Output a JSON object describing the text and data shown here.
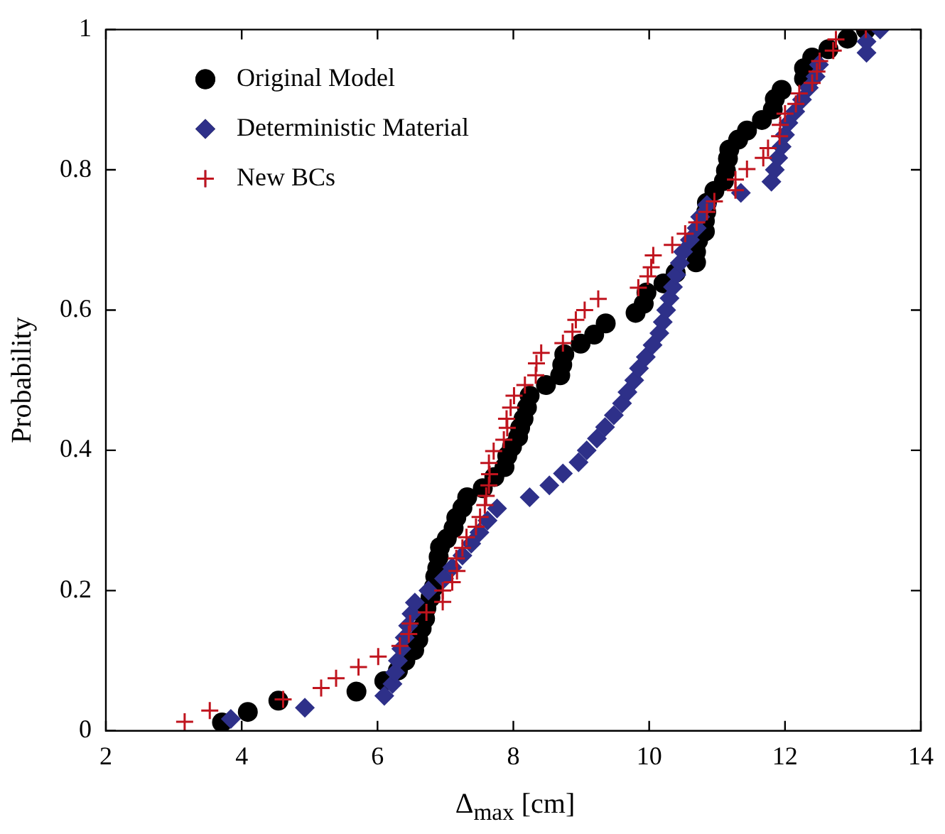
{
  "chart_data": {
    "type": "scatter",
    "xlabel": "Δ$_{max}$ [cm]",
    "ylabel": "Probability",
    "xlim": [
      2,
      14
    ],
    "xticks": [
      2,
      4,
      6,
      8,
      10,
      12,
      14
    ],
    "ylim": [
      0,
      1
    ],
    "yticks": [
      0,
      0.2,
      0.4,
      0.6,
      0.8,
      1
    ],
    "grid": false,
    "legend": "top left",
    "series": [
      {
        "name": "Original Model",
        "color": "#000000",
        "marker": "circle",
        "x": [
          3.71,
          4.09,
          4.54,
          5.69,
          6.1,
          6.3,
          6.41,
          6.54,
          6.6,
          6.65,
          6.7,
          6.72,
          6.78,
          6.83,
          6.85,
          6.88,
          6.9,
          6.92,
          7.02,
          7.12,
          7.16,
          7.25,
          7.32,
          7.55,
          7.72,
          7.87,
          7.91,
          7.98,
          8.07,
          8.1,
          8.15,
          8.2,
          8.24,
          8.48,
          8.69,
          8.72,
          8.75,
          8.99,
          9.19,
          9.36,
          9.8,
          9.92,
          9.96,
          10.21,
          10.39,
          10.69,
          10.69,
          10.72,
          10.82,
          10.82,
          10.84,
          10.85,
          10.96,
          11.1,
          11.13,
          11.16,
          11.18,
          11.31,
          11.44,
          11.66,
          11.82,
          11.85,
          11.95,
          12.28,
          12.28,
          12.4,
          12.64,
          12.92,
          13.19
        ],
        "values": [
          0.012,
          0.027,
          0.043,
          0.056,
          0.071,
          0.086,
          0.1,
          0.115,
          0.13,
          0.146,
          0.16,
          0.175,
          0.19,
          0.205,
          0.22,
          0.232,
          0.248,
          0.262,
          0.274,
          0.289,
          0.304,
          0.318,
          0.333,
          0.346,
          0.362,
          0.376,
          0.392,
          0.405,
          0.419,
          0.432,
          0.445,
          0.461,
          0.478,
          0.493,
          0.507,
          0.522,
          0.537,
          0.552,
          0.565,
          0.581,
          0.596,
          0.609,
          0.625,
          0.638,
          0.653,
          0.668,
          0.683,
          0.699,
          0.712,
          0.727,
          0.74,
          0.753,
          0.77,
          0.784,
          0.799,
          0.816,
          0.829,
          0.843,
          0.856,
          0.871,
          0.886,
          0.901,
          0.914,
          0.93,
          0.945,
          0.96,
          0.972,
          0.987,
          1.0
        ]
      },
      {
        "name": "Deterministic Material",
        "color": "#2e3089",
        "marker": "diamond",
        "x": [
          3.84,
          4.93,
          6.1,
          6.22,
          6.26,
          6.3,
          6.35,
          6.4,
          6.45,
          6.5,
          6.55,
          6.75,
          6.98,
          7.1,
          7.25,
          7.38,
          7.5,
          7.62,
          7.76,
          8.24,
          8.53,
          8.73,
          8.96,
          9.08,
          9.23,
          9.35,
          9.48,
          9.6,
          9.68,
          9.78,
          9.85,
          9.95,
          10.05,
          10.15,
          10.2,
          10.25,
          10.3,
          10.35,
          10.4,
          10.45,
          10.5,
          10.6,
          10.7,
          10.75,
          10.85,
          11.35,
          11.8,
          11.85,
          11.9,
          11.95,
          12.0,
          12.05,
          12.15,
          12.25,
          12.35,
          12.45,
          12.5,
          13.2,
          13.2,
          13.4
        ],
        "values": [
          0.017,
          0.033,
          0.05,
          0.067,
          0.083,
          0.1,
          0.117,
          0.133,
          0.15,
          0.167,
          0.183,
          0.2,
          0.217,
          0.233,
          0.25,
          0.267,
          0.283,
          0.3,
          0.317,
          0.333,
          0.35,
          0.367,
          0.383,
          0.4,
          0.417,
          0.433,
          0.45,
          0.467,
          0.483,
          0.5,
          0.517,
          0.533,
          0.55,
          0.567,
          0.583,
          0.6,
          0.617,
          0.633,
          0.65,
          0.667,
          0.683,
          0.7,
          0.717,
          0.733,
          0.75,
          0.767,
          0.783,
          0.8,
          0.817,
          0.833,
          0.85,
          0.867,
          0.883,
          0.9,
          0.917,
          0.933,
          0.95,
          0.967,
          0.983,
          1.0
        ]
      },
      {
        "name": "New BCs",
        "color": "#c0141e",
        "marker": "cross",
        "x": [
          3.16,
          3.53,
          4.61,
          5.17,
          5.39,
          5.72,
          6.01,
          6.33,
          6.46,
          6.48,
          6.72,
          6.96,
          6.96,
          7.1,
          7.17,
          7.16,
          7.25,
          7.31,
          7.45,
          7.51,
          7.58,
          7.6,
          7.64,
          7.65,
          7.64,
          7.71,
          7.86,
          7.91,
          7.9,
          7.96,
          8.01,
          8.17,
          8.33,
          8.34,
          8.41,
          8.73,
          8.87,
          8.92,
          9.05,
          9.25,
          9.84,
          9.98,
          10.03,
          10.06,
          10.34,
          10.53,
          10.7,
          10.85,
          10.96,
          11.27,
          11.27,
          11.44,
          11.68,
          11.75,
          11.92,
          11.93,
          12.0,
          12.16,
          12.21,
          12.4,
          12.47,
          12.51,
          12.71,
          12.75,
          13.19
        ],
        "values": [
          0.013,
          0.029,
          0.045,
          0.061,
          0.075,
          0.091,
          0.106,
          0.121,
          0.138,
          0.153,
          0.169,
          0.184,
          0.2,
          0.212,
          0.228,
          0.246,
          0.261,
          0.276,
          0.291,
          0.305,
          0.322,
          0.335,
          0.35,
          0.366,
          0.382,
          0.399,
          0.415,
          0.432,
          0.445,
          0.461,
          0.478,
          0.493,
          0.507,
          0.524,
          0.539,
          0.553,
          0.569,
          0.586,
          0.6,
          0.616,
          0.632,
          0.648,
          0.661,
          0.678,
          0.693,
          0.709,
          0.725,
          0.74,
          0.755,
          0.771,
          0.786,
          0.801,
          0.817,
          0.831,
          0.848,
          0.864,
          0.88,
          0.894,
          0.909,
          0.924,
          0.94,
          0.955,
          0.97,
          0.986,
          1.0
        ]
      }
    ]
  }
}
